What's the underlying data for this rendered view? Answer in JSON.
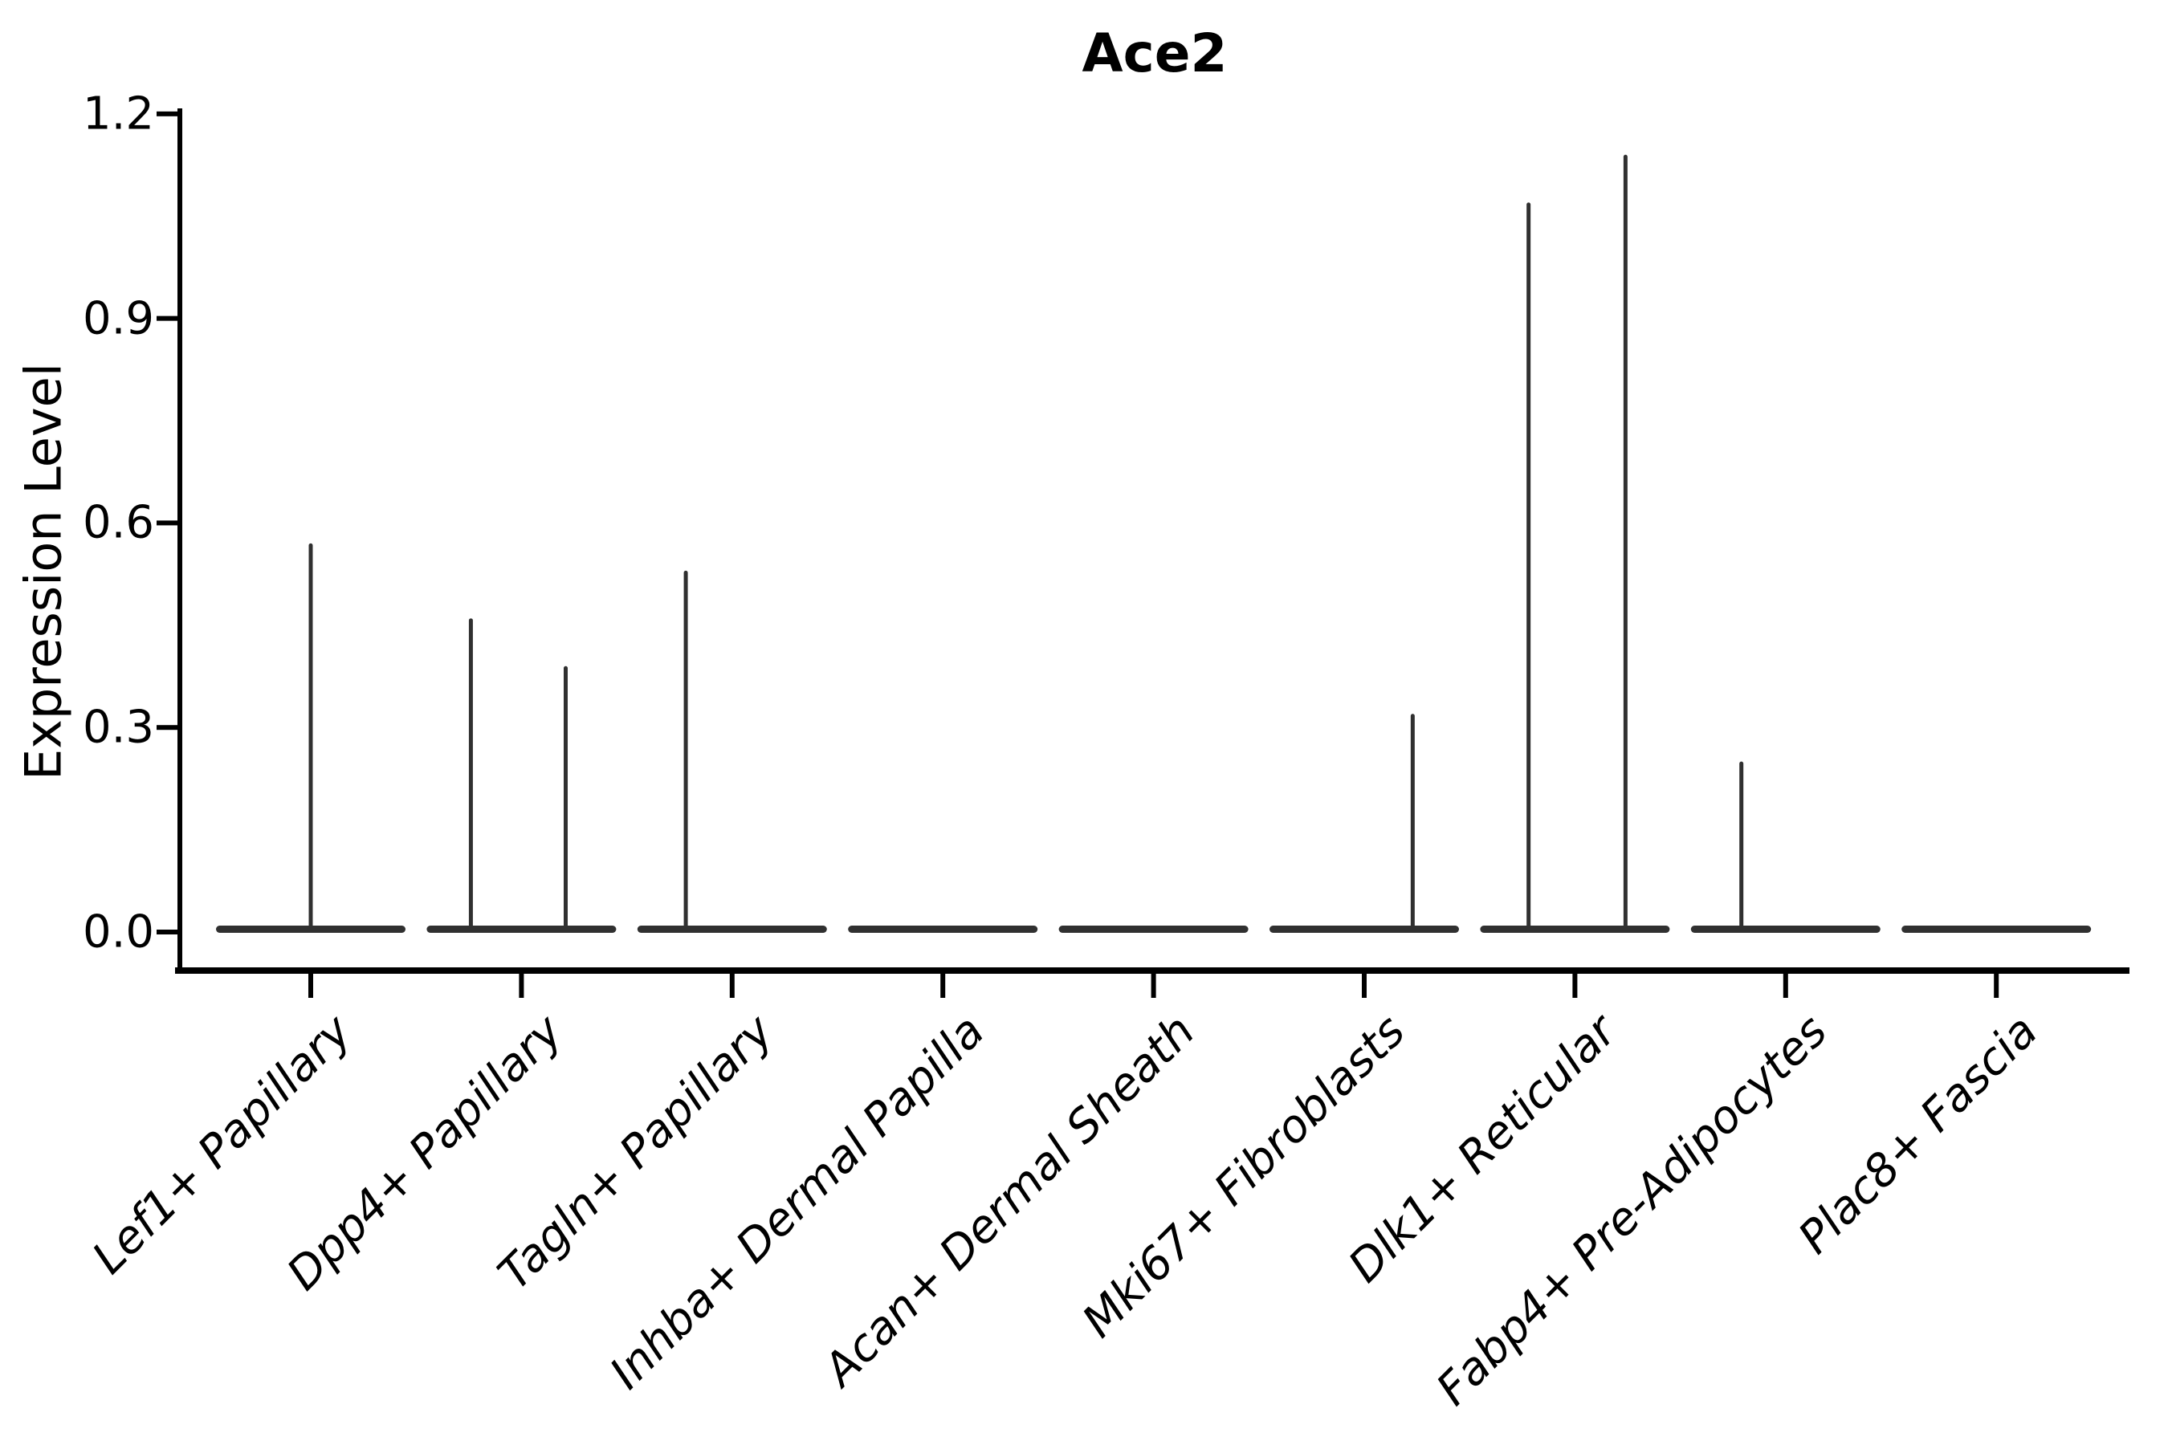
{
  "figure": {
    "title": "Ace2",
    "ylabel": "Expression Level"
  },
  "chart_data": {
    "type": "violin",
    "title": "Ace2",
    "xlabel": "",
    "ylabel": "Expression Level",
    "ylim": [
      0.0,
      1.2
    ],
    "yticks": [
      "0.0",
      "0.3",
      "0.6",
      "0.9",
      "1.2"
    ],
    "ytick_values": [
      0.0,
      0.3,
      0.6,
      0.9,
      1.2
    ],
    "grid": false,
    "legend": null,
    "categories": [
      "Lef1+ Papillary",
      "Dpp4+ Papillary",
      "Tagln+ Papillary",
      "Inhba+ Dermal Papilla",
      "Acan+ Dermal Sheath",
      "Mki67+ Fibroblasts",
      "Dlk1+ Reticular",
      "Fabp4+ Pre-Adipocytes",
      "Plac8+ Fascia"
    ],
    "violins": [
      {
        "category": "Lef1+ Papillary",
        "body_value": 0.0,
        "spikes": [
          {
            "offset_frac": 0.0,
            "value": 0.57
          }
        ]
      },
      {
        "category": "Dpp4+ Papillary",
        "body_value": 0.0,
        "spikes": [
          {
            "offset_frac": -0.24,
            "value": 0.46
          },
          {
            "offset_frac": 0.21,
            "value": 0.39
          }
        ]
      },
      {
        "category": "Tagln+ Papillary",
        "body_value": 0.0,
        "spikes": [
          {
            "offset_frac": -0.22,
            "value": 0.53
          }
        ]
      },
      {
        "category": "Inhba+ Dermal Papilla",
        "body_value": 0.0,
        "spikes": []
      },
      {
        "category": "Acan+ Dermal Sheath",
        "body_value": 0.0,
        "spikes": []
      },
      {
        "category": "Mki67+ Fibroblasts",
        "body_value": 0.0,
        "spikes": [
          {
            "offset_frac": 0.23,
            "value": 0.32
          }
        ]
      },
      {
        "category": "Dlk1+ Reticular",
        "body_value": 0.0,
        "spikes": [
          {
            "offset_frac": -0.22,
            "value": 1.07
          },
          {
            "offset_frac": 0.24,
            "value": 1.14
          }
        ]
      },
      {
        "category": "Fabp4+ Pre-Adipocytes",
        "body_value": 0.0,
        "spikes": [
          {
            "offset_frac": -0.21,
            "value": 0.25
          }
        ]
      },
      {
        "category": "Plac8+ Fascia",
        "body_value": 0.0,
        "spikes": []
      }
    ],
    "colors": {
      "violin": "#303030",
      "axis": "#000000",
      "text": "#000000",
      "background": "#ffffff"
    }
  }
}
